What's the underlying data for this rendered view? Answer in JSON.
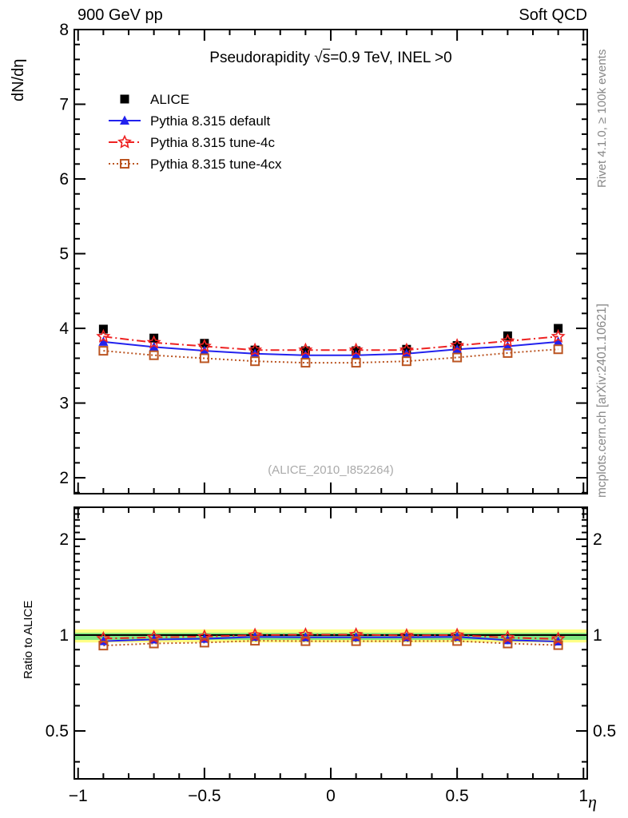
{
  "header": {
    "left": "900 GeV pp",
    "right": "Soft QCD"
  },
  "plot_text": {
    "title_prefix": "Pseudorapidity √",
    "title_sqrt_arg": "s",
    "title_suffix": "=0.9 TeV, INEL >0",
    "ylabel_main": "dN/dη",
    "ylabel_ratio": "Ratio to ALICE",
    "xlabel": "η",
    "watermark": "(ALICE_2010_I852264)",
    "side_text_top": "Rivet 4.1.0, ≥ 100k events",
    "side_text_bottom": "mcplots.cern.ch [arXiv:2401.10621]"
  },
  "chart_data": {
    "type": "line",
    "title": "Pseudorapidity √s=0.9 TeV, INEL >0",
    "xlabel": "η",
    "ylabel": "dN/dη",
    "ratio_label": "Ratio to ALICE",
    "x": [
      -0.9,
      -0.7,
      -0.5,
      -0.3,
      -0.1,
      0.1,
      0.3,
      0.5,
      0.7,
      0.9
    ],
    "series": [
      {
        "name": "ALICE",
        "color": "#000000",
        "line": "none",
        "marker": "filled-square",
        "values": [
          3.99,
          3.87,
          3.8,
          3.71,
          3.7,
          3.7,
          3.72,
          3.77,
          3.9,
          4.0
        ]
      },
      {
        "name": "Pythia 8.315 default",
        "color": "#2222ee",
        "line": "solid",
        "marker": "filled-triangle",
        "values": [
          3.82,
          3.75,
          3.7,
          3.66,
          3.64,
          3.64,
          3.66,
          3.72,
          3.76,
          3.82
        ],
        "ratio": [
          0.957,
          0.969,
          0.974,
          0.987,
          0.984,
          0.984,
          0.984,
          0.987,
          0.964,
          0.955
        ]
      },
      {
        "name": "Pythia 8.315 tune-4c",
        "color": "#ee2222",
        "line": "dashdot",
        "marker": "open-star",
        "values": [
          3.89,
          3.81,
          3.76,
          3.71,
          3.71,
          3.71,
          3.71,
          3.77,
          3.83,
          3.89
        ],
        "ratio": [
          0.975,
          0.984,
          0.989,
          1.0,
          1.003,
          1.003,
          0.997,
          1.0,
          0.982,
          0.973
        ]
      },
      {
        "name": "Pythia 8.315 tune-4cx",
        "color": "#bb5522",
        "line": "dotted",
        "marker": "open-square",
        "values": [
          3.7,
          3.64,
          3.6,
          3.56,
          3.54,
          3.54,
          3.56,
          3.61,
          3.67,
          3.72
        ],
        "ratio": [
          0.927,
          0.941,
          0.947,
          0.96,
          0.957,
          0.957,
          0.957,
          0.958,
          0.941,
          0.93
        ]
      }
    ],
    "x_axis": {
      "xlim": [
        -1.015,
        1.015
      ],
      "ticks": [
        -1,
        -0.5,
        0,
        0.5,
        1
      ],
      "tick_labels": [
        "−1",
        "−0.5",
        "0",
        "0.5",
        "1"
      ],
      "minor_step": 0.1
    },
    "main_axis": {
      "scale": "linear",
      "ylim": [
        1.787,
        8
      ],
      "ticks": [
        2,
        3,
        4,
        5,
        6,
        7,
        8
      ],
      "tick_labels": [
        "2",
        "3",
        "4",
        "5",
        "6",
        "7",
        "8"
      ],
      "minor_step": 0.2
    },
    "ratio_axis": {
      "scale": "log",
      "ylim": [
        0.3536,
        2.52
      ],
      "ticks": [
        0.5,
        1,
        2
      ],
      "tick_labels": [
        "0.5",
        "1",
        "2"
      ],
      "minor_ticks": [
        0.4,
        0.6,
        0.7,
        0.8,
        0.9,
        1.1,
        1.2,
        1.3,
        1.4,
        1.5,
        1.6,
        1.7,
        1.8,
        1.9,
        2.1,
        2.2,
        2.3,
        2.4,
        2.5
      ]
    },
    "ratio_bands": {
      "reference_line": 1.0,
      "yellow": [
        0.948,
        1.042
      ],
      "yellow_color": "#ffff85",
      "green": [
        0.966,
        1.016
      ],
      "green_color": "#7fe57f"
    },
    "legend_position": "top-left",
    "grid": false
  }
}
